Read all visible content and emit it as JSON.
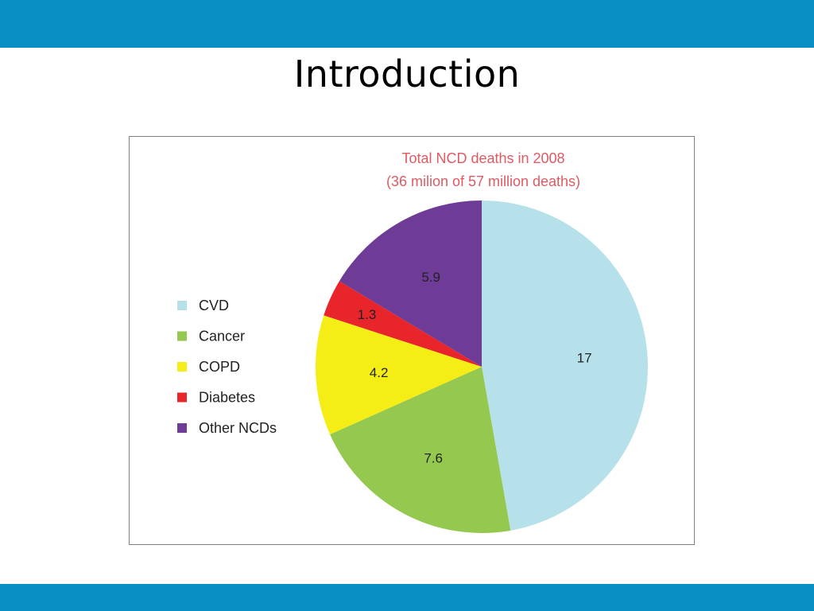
{
  "slide": {
    "title": "Introduction",
    "accent_color": "#0a8fc4"
  },
  "chart_data": {
    "type": "pie",
    "title": "Total NCD deaths in 2008",
    "subtitle": "(36 milion of 57 million deaths)",
    "title_color": "#e05a64",
    "legend_position": "left",
    "categories": [
      "CVD",
      "Cancer",
      "COPD",
      "Diabetes",
      "Other NCDs"
    ],
    "values": [
      17,
      7.6,
      4.2,
      1.3,
      5.9
    ],
    "labels": [
      "17",
      "7.6",
      "4.2",
      "1.3",
      "5.9"
    ],
    "colors": [
      "#b7e1ea",
      "#94c84f",
      "#f5ed16",
      "#e7252b",
      "#6e3b96"
    ]
  }
}
